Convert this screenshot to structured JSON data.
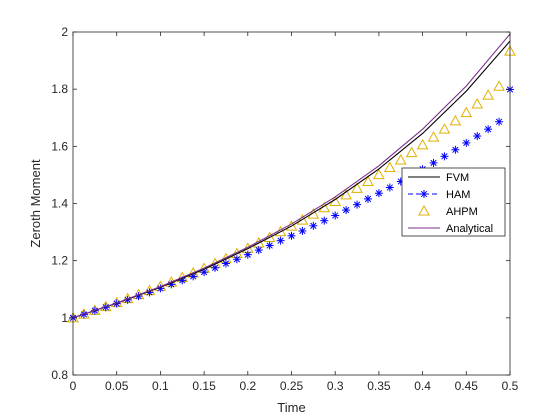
{
  "chart_data": {
    "type": "line",
    "title": "",
    "xlabel": "Time",
    "ylabel": "Zeroth Moment",
    "xlim": [
      0,
      0.5
    ],
    "ylim": [
      0.8,
      2
    ],
    "xticks": [
      0,
      0.05,
      0.1,
      0.15,
      0.2,
      0.25,
      0.3,
      0.35,
      0.4,
      0.45,
      0.5
    ],
    "xtick_labels": [
      "0",
      "0.05",
      "0.1",
      "0.15",
      "0.2",
      "0.25",
      "0.3",
      "0.35",
      "0.4",
      "0.45",
      "0.5"
    ],
    "yticks": [
      0.8,
      1,
      1.2,
      1.4,
      1.6,
      1.8,
      2
    ],
    "ytick_labels": [
      "0.8",
      "1",
      "1.2",
      "1.4",
      "1.6",
      "1.8",
      "2"
    ],
    "grid": false,
    "legend_position": "right",
    "series": [
      {
        "name": "FVM",
        "style": "line",
        "color": "#000000",
        "x": [
          0,
          0.05,
          0.1,
          0.15,
          0.2,
          0.25,
          0.3,
          0.35,
          0.4,
          0.45,
          0.5
        ],
        "y": [
          1.0,
          1.051,
          1.107,
          1.17,
          1.242,
          1.321,
          1.414,
          1.521,
          1.645,
          1.793,
          1.968
        ]
      },
      {
        "name": "HAM",
        "style": "marker-star-dashed",
        "color": "#0000ff",
        "x": [
          0,
          0.0125,
          0.025,
          0.0375,
          0.05,
          0.0625,
          0.075,
          0.0875,
          0.1,
          0.1125,
          0.125,
          0.1375,
          0.15,
          0.1625,
          0.175,
          0.1875,
          0.2,
          0.2125,
          0.225,
          0.2375,
          0.25,
          0.2625,
          0.275,
          0.2875,
          0.3,
          0.3125,
          0.325,
          0.3375,
          0.35,
          0.3625,
          0.375,
          0.3875,
          0.4,
          0.4125,
          0.425,
          0.4375,
          0.45,
          0.4625,
          0.475,
          0.4875,
          0.5
        ],
        "y": [
          1.0,
          1.012,
          1.025,
          1.037,
          1.05,
          1.063,
          1.076,
          1.089,
          1.103,
          1.117,
          1.131,
          1.145,
          1.16,
          1.175,
          1.19,
          1.205,
          1.221,
          1.237,
          1.253,
          1.27,
          1.287,
          1.304,
          1.322,
          1.34,
          1.358,
          1.377,
          1.396,
          1.416,
          1.436,
          1.456,
          1.477,
          1.498,
          1.52,
          1.542,
          1.565,
          1.588,
          1.612,
          1.636,
          1.66,
          1.686,
          1.799
        ]
      },
      {
        "name": "AHPM",
        "style": "marker-triangle",
        "color": "#e0b000",
        "x": [
          0,
          0.0125,
          0.025,
          0.0375,
          0.05,
          0.0625,
          0.075,
          0.0875,
          0.1,
          0.1125,
          0.125,
          0.1375,
          0.15,
          0.1625,
          0.175,
          0.1875,
          0.2,
          0.2125,
          0.225,
          0.2375,
          0.25,
          0.2625,
          0.275,
          0.2875,
          0.3,
          0.3125,
          0.325,
          0.3375,
          0.35,
          0.3625,
          0.375,
          0.3875,
          0.4,
          0.4125,
          0.425,
          0.4375,
          0.45,
          0.4625,
          0.475,
          0.4875,
          0.5
        ],
        "y": [
          1.0,
          1.013,
          1.026,
          1.039,
          1.053,
          1.067,
          1.081,
          1.095,
          1.11,
          1.125,
          1.141,
          1.157,
          1.173,
          1.19,
          1.207,
          1.225,
          1.243,
          1.262,
          1.281,
          1.301,
          1.321,
          1.342,
          1.363,
          1.385,
          1.407,
          1.43,
          1.453,
          1.477,
          1.501,
          1.526,
          1.552,
          1.578,
          1.605,
          1.632,
          1.66,
          1.689,
          1.718,
          1.748,
          1.779,
          1.81,
          1.933
        ]
      },
      {
        "name": "Analytical",
        "style": "line",
        "color": "#7e2f8e",
        "x": [
          0,
          0.05,
          0.1,
          0.15,
          0.2,
          0.25,
          0.3,
          0.35,
          0.4,
          0.45,
          0.5
        ],
        "y": [
          1.0,
          1.052,
          1.109,
          1.174,
          1.247,
          1.328,
          1.423,
          1.532,
          1.66,
          1.811,
          1.993
        ]
      }
    ]
  }
}
